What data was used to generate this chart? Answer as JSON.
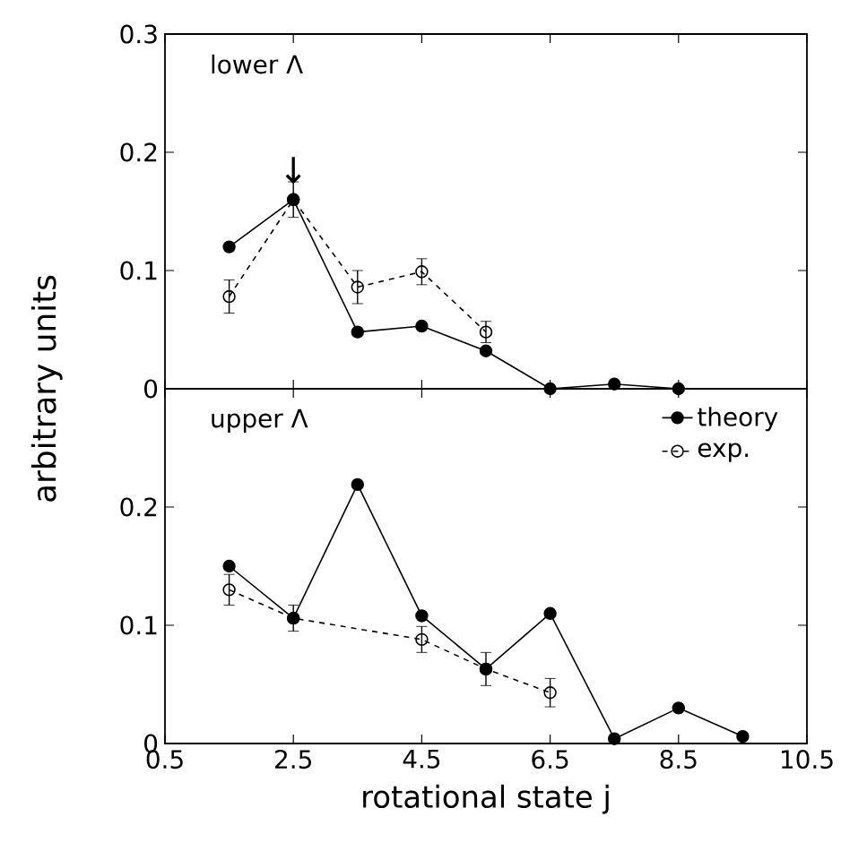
{
  "chart_data": [
    {
      "type": "line",
      "title": "lower Λ",
      "ylabel": "arbitrary units",
      "xlim": [
        0.5,
        10.5
      ],
      "xticks": [
        0.5,
        2.5,
        4.5,
        6.5,
        8.5,
        10.5
      ],
      "ylim": [
        0,
        0.3
      ],
      "yticks": [
        0,
        0.1,
        0.2,
        0.3
      ],
      "tick_labels": "y",
      "marker": "circle",
      "grid": false,
      "legend": false,
      "annotations": [
        {
          "text": "↓",
          "x": 2.5,
          "y": 0.16
        }
      ],
      "series": [
        {
          "color": "#000000",
          "line_style": "solid",
          "x": [
            1.5,
            2.5,
            3.5,
            4.5,
            5.5,
            6.5,
            7.5,
            8.5
          ],
          "values": [
            0.12,
            0.16,
            0.048,
            0.053,
            0.032,
            0,
            0.004,
            0
          ]
        },
        {
          "color": "#000000",
          "line_style": "dashed",
          "x": [
            1.5,
            2.5,
            3.5,
            4.5,
            5.5
          ],
          "values": [
            0.078,
            0.16,
            0.086,
            0.099,
            0.048
          ],
          "errors": [
            0.014,
            0.015,
            0.014,
            0.011,
            0.009
          ]
        }
      ]
    },
    {
      "type": "line",
      "title": "upper Λ",
      "xlabel": "rotational state j",
      "xlim": [
        0.5,
        10.5
      ],
      "xticks": [
        0.5,
        2.5,
        4.5,
        6.5,
        8.5,
        10.5
      ],
      "ylim": [
        0,
        0.3
      ],
      "yticks": [
        0,
        0.1,
        0.2,
        {
          "value": 0.3,
          "label": null
        }
      ],
      "marker": "circle",
      "grid": false,
      "legend": "top right",
      "series": [
        {
          "name": "theory",
          "color": "#000000",
          "line_style": "solid",
          "x": [
            1.5,
            2.5,
            3.5,
            4.5,
            5.5,
            6.5,
            7.5,
            8.5,
            9.5
          ],
          "values": [
            0.15,
            0.106,
            0.219,
            0.108,
            0.063,
            0.11,
            0.004,
            0.03,
            0.006
          ]
        },
        {
          "name": "exp.",
          "color": "#000000",
          "line_style": "dashed",
          "x": [
            1.5,
            2.5,
            4.5,
            5.5,
            6.5
          ],
          "values": [
            0.13,
            0.106,
            0.088,
            0.063,
            0.043
          ],
          "errors": [
            0.013,
            0.011,
            0.011,
            0.014,
            0.012
          ]
        }
      ]
    }
  ]
}
